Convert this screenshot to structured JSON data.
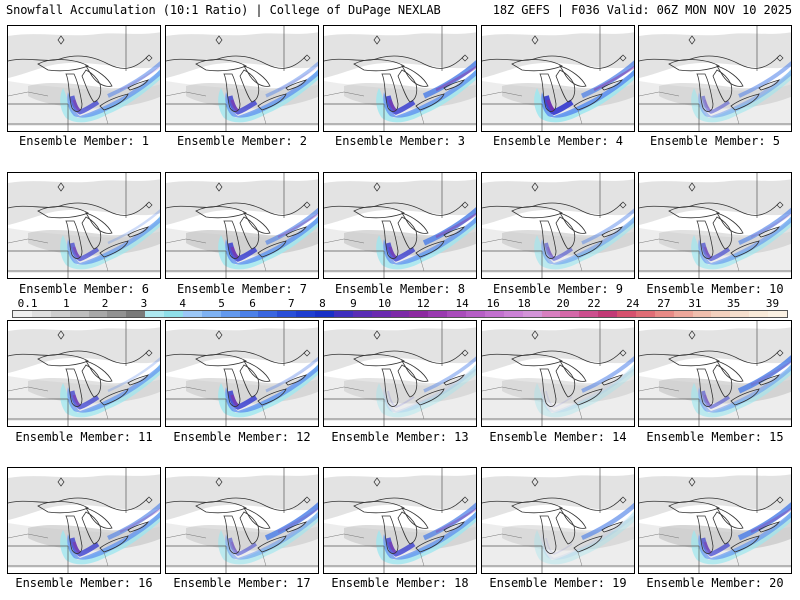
{
  "header": {
    "left": "Snowfall Accumulation (10:1 Ratio) | College of DuPage NEXLAB",
    "right": "18Z GEFS | F036 Valid: 06Z MON NOV 10 2025"
  },
  "legend": {
    "labels": [
      "0.1",
      "1",
      "2",
      "3",
      "4",
      "5",
      "6",
      "7",
      "8",
      "9",
      "10",
      "12",
      "14",
      "16",
      "18",
      "20",
      "22",
      "24",
      "27",
      "31",
      "35",
      "39"
    ],
    "colors": [
      "#f0f0f0",
      "#e0e0e0",
      "#cfcfcf",
      "#bdbdbd",
      "#a8a8a8",
      "#929292",
      "#7a7a7a",
      "#aee8f0",
      "#8fdfe9",
      "#9cc8f7",
      "#7fb2f3",
      "#6399ee",
      "#4c80e8",
      "#3a66e0",
      "#2a4fd8",
      "#1f3ed0",
      "#1830c7",
      "#3f2fbf",
      "#5a2db6",
      "#6b2bb0",
      "#7d2aa8",
      "#8d2aa1",
      "#9a3ab0",
      "#a94cbb",
      "#b65ec6",
      "#c270cf",
      "#cc82d6",
      "#d394d8",
      "#d87fc0",
      "#d468a8",
      "#cc4f8e",
      "#c23a76",
      "#d6516e",
      "#e06d76",
      "#e88a86",
      "#eea79b",
      "#f1bfae",
      "#f4d1bf",
      "#f6dfce",
      "#f9ead9",
      "#fbf1e3"
    ]
  },
  "captions": [
    "Ensemble Member: 1",
    "Ensemble Member: 2",
    "Ensemble Member: 3",
    "Ensemble Member: 4",
    "Ensemble Member: 5",
    "Ensemble Member: 6",
    "Ensemble Member: 7",
    "Ensemble Member: 8",
    "Ensemble Member: 9",
    "Ensemble Member: 10",
    "Ensemble Member: 11",
    "Ensemble Member: 12",
    "Ensemble Member: 13",
    "Ensemble Member: 14",
    "Ensemble Member: 15",
    "Ensemble Member: 16",
    "Ensemble Member: 17",
    "Ensemble Member: 18",
    "Ensemble Member: 19",
    "Ensemble Member: 20"
  ],
  "members": [
    {
      "intensity": 0.75,
      "east": 0.6,
      "ohio": 0.3
    },
    {
      "intensity": 0.8,
      "east": 0.5,
      "ohio": 0.3
    },
    {
      "intensity": 0.85,
      "east": 0.9,
      "ohio": 0.2
    },
    {
      "intensity": 0.95,
      "east": 0.8,
      "ohio": 0.3
    },
    {
      "intensity": 0.5,
      "east": 0.6,
      "ohio": 0.2
    },
    {
      "intensity": 0.7,
      "east": 0.3,
      "ohio": 0.4
    },
    {
      "intensity": 0.85,
      "east": 0.7,
      "ohio": 0.6
    },
    {
      "intensity": 0.8,
      "east": 0.9,
      "ohio": 0.5
    },
    {
      "intensity": 0.55,
      "east": 0.5,
      "ohio": 0.4
    },
    {
      "intensity": 0.65,
      "east": 0.7,
      "ohio": 0.2
    },
    {
      "intensity": 0.75,
      "east": 0.3,
      "ohio": 0.2
    },
    {
      "intensity": 0.85,
      "east": 0.4,
      "ohio": 0.3
    },
    {
      "intensity": 0.15,
      "east": 0.5,
      "ohio": 0.1
    },
    {
      "intensity": 0.1,
      "east": 0.6,
      "ohio": 0.1
    },
    {
      "intensity": 0.55,
      "east": 0.9,
      "ohio": 0.5
    },
    {
      "intensity": 0.8,
      "east": 0.7,
      "ohio": 0.5
    },
    {
      "intensity": 0.55,
      "east": 0.9,
      "ohio": 0.3
    },
    {
      "intensity": 0.8,
      "east": 0.8,
      "ohio": 0.4
    },
    {
      "intensity": 0.1,
      "east": 0.7,
      "ohio": 0.1
    },
    {
      "intensity": 0.7,
      "east": 0.9,
      "ohio": 0.6
    }
  ]
}
